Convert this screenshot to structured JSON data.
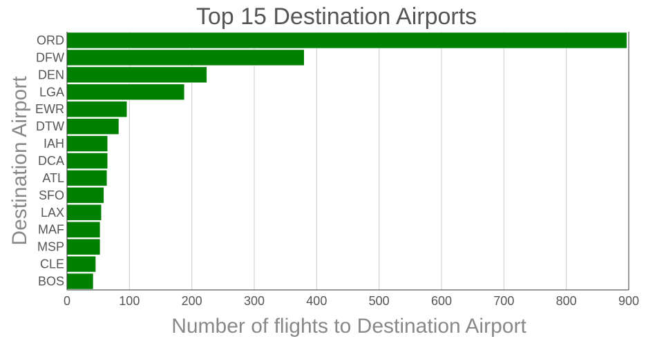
{
  "chart_data": {
    "type": "bar",
    "orientation": "horizontal",
    "title": "Top 15 Destination Airports",
    "xlabel": "Number of flights to Destination Airport",
    "ylabel": "Destination Airport",
    "categories": [
      "ORD",
      "DFW",
      "DEN",
      "LGA",
      "EWR",
      "DTW",
      "IAH",
      "DCA",
      "ATL",
      "SFO",
      "LAX",
      "MAF",
      "MSP",
      "CLE",
      "BOS"
    ],
    "values": [
      897,
      380,
      224,
      188,
      96,
      83,
      65,
      65,
      64,
      59,
      55,
      53,
      53,
      46,
      42
    ],
    "xlim": [
      0,
      900
    ],
    "xticks": [
      0,
      100,
      200,
      300,
      400,
      500,
      600,
      700,
      800,
      900
    ],
    "grid": "vertical",
    "bar_color": "#008000",
    "legend": "none"
  }
}
